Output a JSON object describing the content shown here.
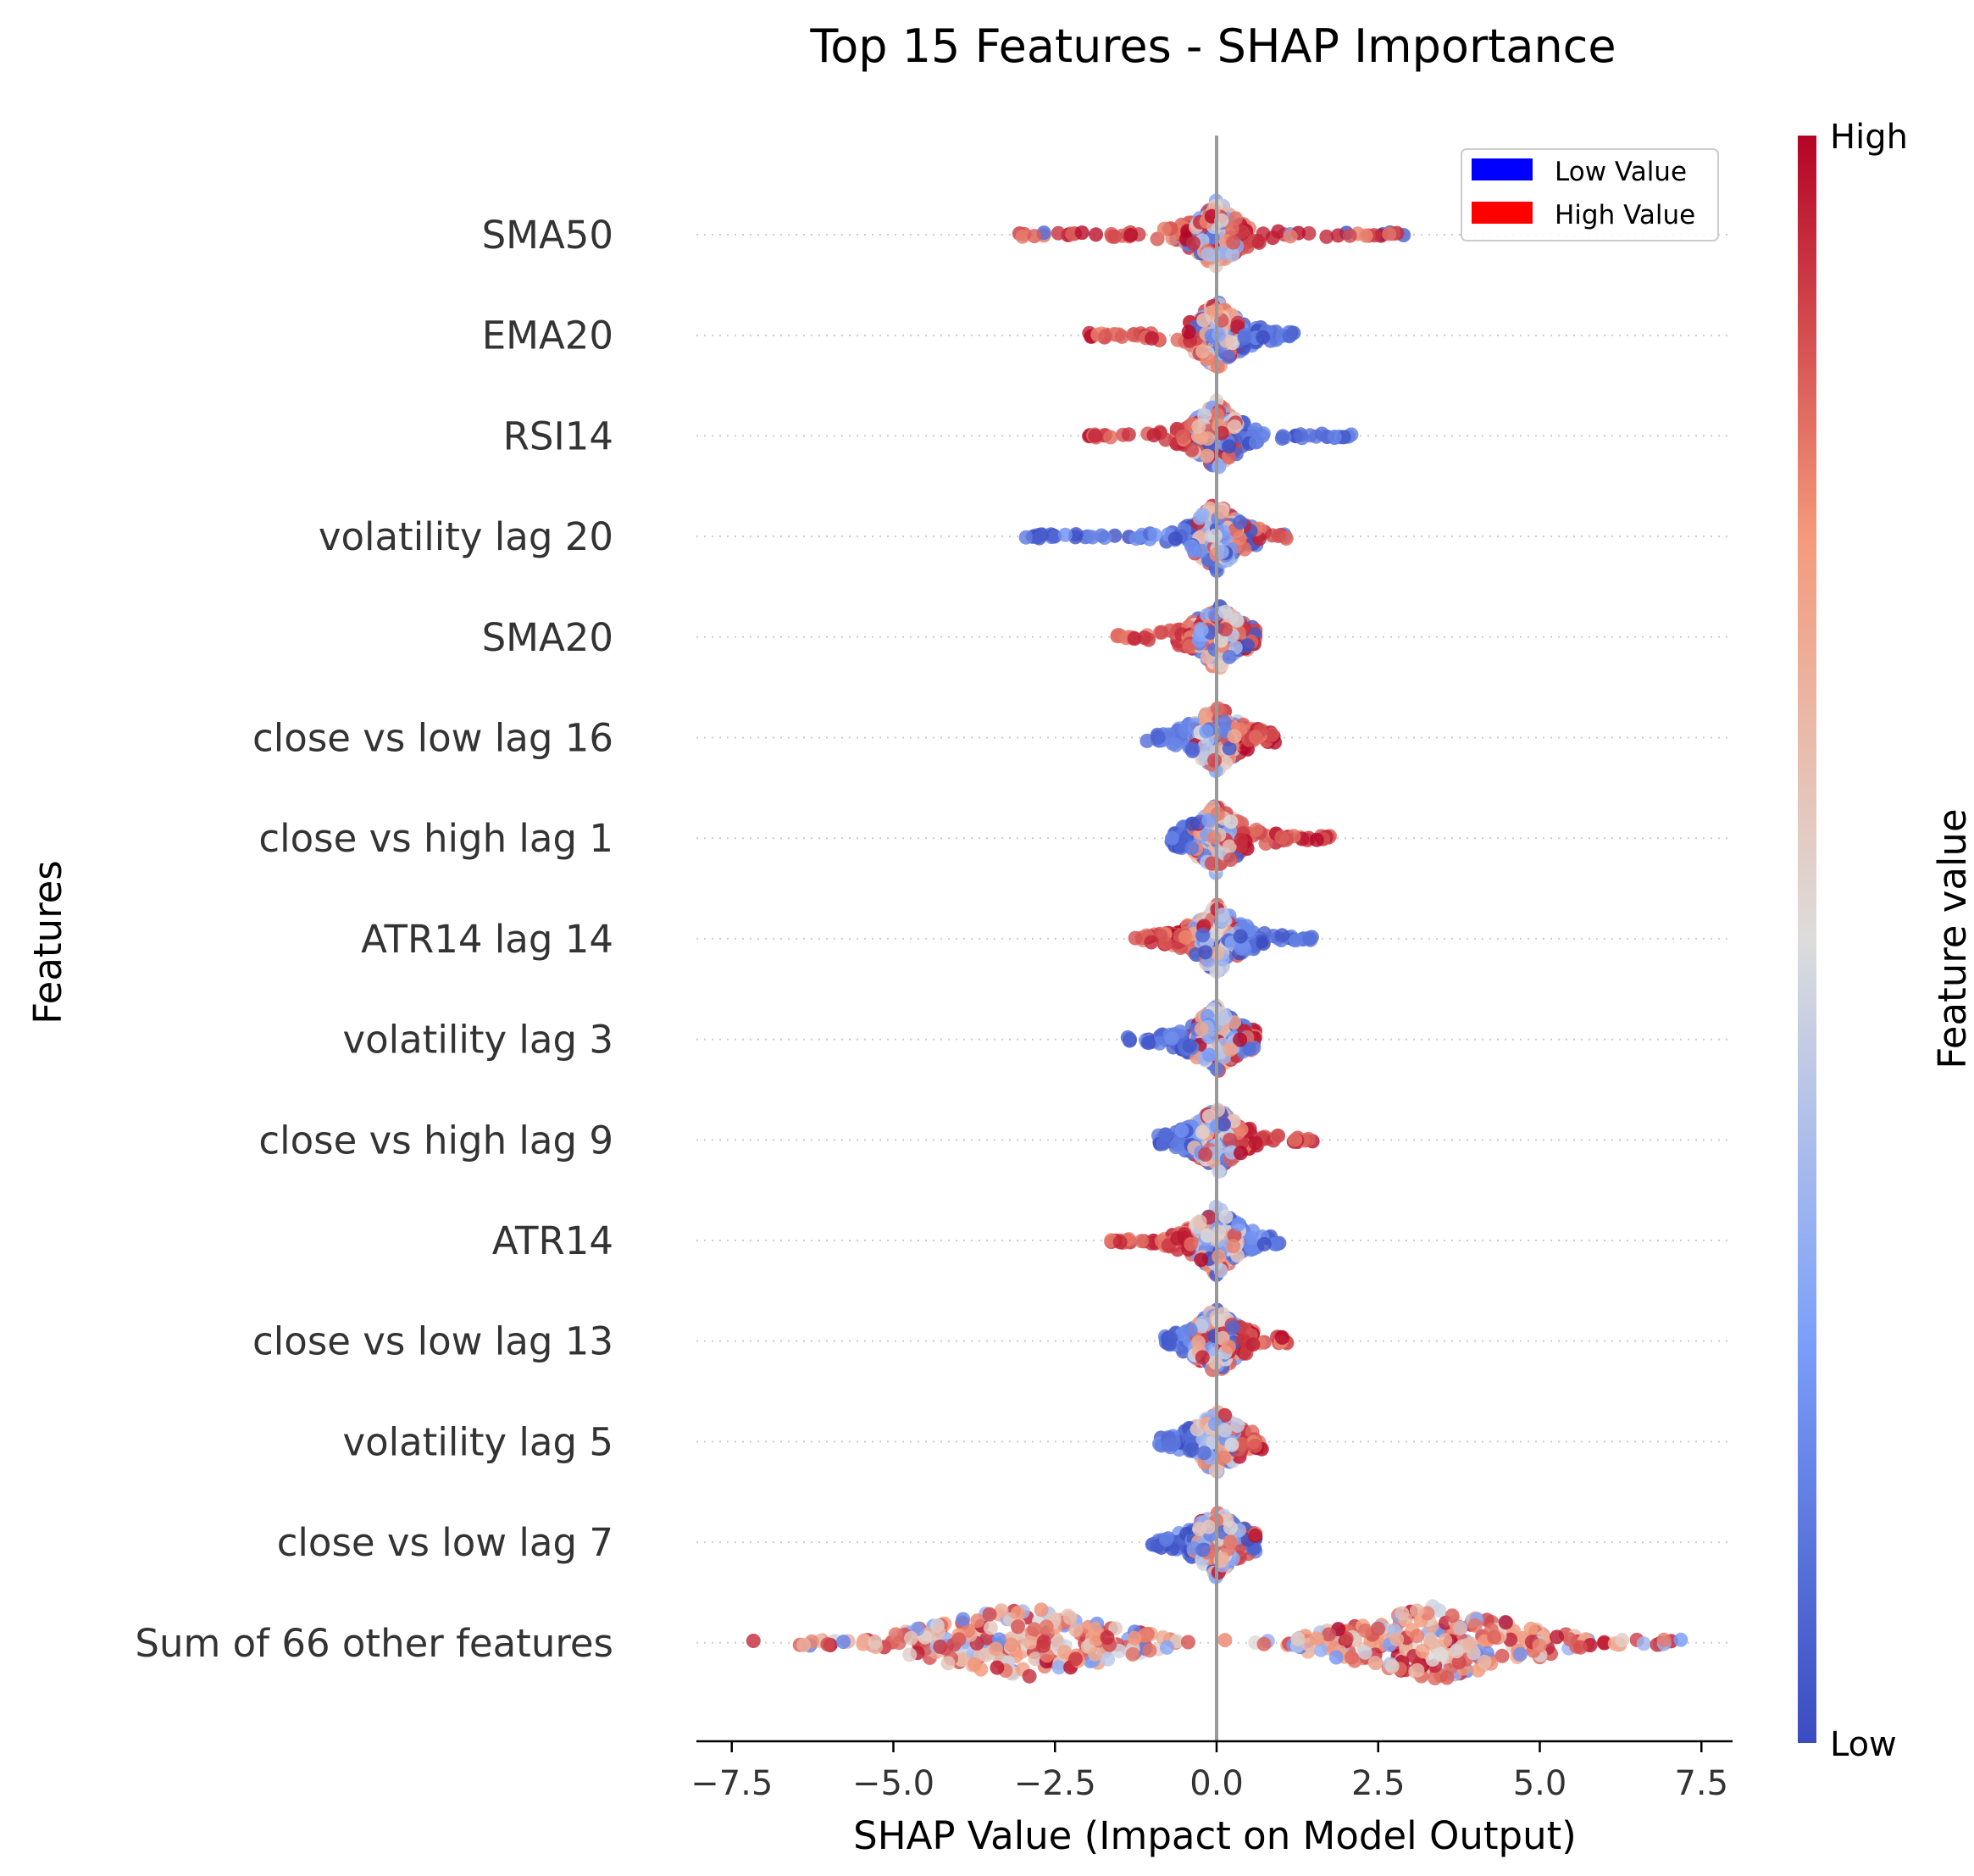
{
  "chart_data": {
    "type": "scatter",
    "subtype": "shap-beeswarm",
    "title": "Top 15 Features - SHAP Importance",
    "xlabel": "SHAP Value (Impact on Model Output)",
    "ylabel": "Features",
    "xlim": [
      -8.1,
      8.1
    ],
    "xticks": [
      -7.5,
      -5.0,
      -2.5,
      0.0,
      2.5,
      5.0,
      7.5
    ],
    "xtick_labels": [
      "−7.5",
      "−5.0",
      "−2.5",
      "0.0",
      "2.5",
      "5.0",
      "7.5"
    ],
    "zero_line": 0,
    "grid": "dotted-horizontal",
    "colormap": "coolwarm",
    "low_color": "#3b4cc0",
    "high_color": "#b40426",
    "features": [
      {
        "name": "SMA50",
        "min": -3.1,
        "max": 2.9,
        "low_side": "center",
        "high_side": "both"
      },
      {
        "name": "EMA20",
        "min": -2.0,
        "max": 1.2,
        "low_side": "right",
        "high_side": "left"
      },
      {
        "name": "RSI14",
        "min": -2.0,
        "max": 2.1,
        "low_side": "right",
        "high_side": "left"
      },
      {
        "name": "volatility lag 20",
        "min": -3.0,
        "max": 1.1,
        "low_side": "left",
        "high_side": "center"
      },
      {
        "name": "SMA20",
        "min": -1.6,
        "max": 0.6,
        "low_side": "center",
        "high_side": "left"
      },
      {
        "name": "close vs low lag 16",
        "min": -1.1,
        "max": 0.9,
        "low_side": "left",
        "high_side": "right"
      },
      {
        "name": "close vs high lag 1",
        "min": -0.7,
        "max": 1.8,
        "low_side": "left",
        "high_side": "right"
      },
      {
        "name": "ATR14 lag 14",
        "min": -1.3,
        "max": 1.5,
        "low_side": "right",
        "high_side": "left"
      },
      {
        "name": "volatility lag 3",
        "min": -1.4,
        "max": 0.6,
        "low_side": "left",
        "high_side": "center"
      },
      {
        "name": "close vs high lag 9",
        "min": -0.9,
        "max": 1.5,
        "low_side": "left",
        "high_side": "right"
      },
      {
        "name": "ATR14",
        "min": -1.7,
        "max": 1.0,
        "low_side": "right",
        "high_side": "left"
      },
      {
        "name": "close vs low lag 13",
        "min": -0.8,
        "max": 1.1,
        "low_side": "left",
        "high_side": "right"
      },
      {
        "name": "volatility lag 5",
        "min": -0.9,
        "max": 0.7,
        "low_side": "left",
        "high_side": "right"
      },
      {
        "name": "close vs low lag 7",
        "min": -1.0,
        "max": 0.6,
        "low_side": "left",
        "high_side": "center"
      },
      {
        "name": "Sum of 66 other features",
        "min": -7.4,
        "max": 7.2,
        "low_side": "both",
        "high_side": "both"
      }
    ],
    "legend": {
      "placement": "top-right",
      "entries": [
        {
          "label": "Low Value",
          "color": "#0000ff"
        },
        {
          "label": "High Value",
          "color": "#ff0000"
        }
      ]
    },
    "colorbar": {
      "label": "Feature value",
      "high_label": "High",
      "low_label": "Low"
    }
  }
}
